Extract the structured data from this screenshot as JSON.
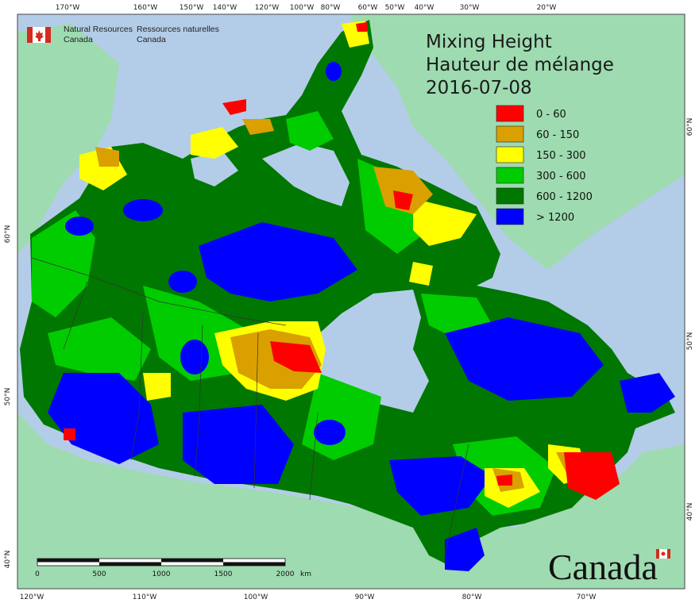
{
  "branding": {
    "agency_en_line1": "Natural Resources",
    "agency_en_line2": "Canada",
    "agency_fr_line1": "Ressources naturelles",
    "agency_fr_line2": "Canada",
    "wordmark": "Canada",
    "flag_color": "#d52b1e"
  },
  "title": {
    "line1": "Mixing Height",
    "line2": "Hauteur de mélange",
    "date": "2016-07-08"
  },
  "legend": [
    {
      "label": "0 - 60",
      "color": "#ff0000"
    },
    {
      "label": "60 - 150",
      "color": "#d9a000"
    },
    {
      "label": "150 - 300",
      "color": "#ffff00"
    },
    {
      "label": "300 - 600",
      "color": "#00cc00"
    },
    {
      "label": "600 - 1200",
      "color": "#007700"
    },
    {
      "label": "> 1200",
      "color": "#0000ff"
    }
  ],
  "graticule": {
    "top": [
      "170°W",
      "160°W",
      "150°W",
      "140°W",
      "120°W",
      "100°W",
      "80°W",
      "60°W",
      "50°W",
      "40°W",
      "30°W",
      "20°W"
    ],
    "bottom": [
      "120°W",
      "110°W",
      "100°W",
      "90°W",
      "80°W",
      "70°W"
    ],
    "left": [
      "60°N",
      "50°N",
      "40°N"
    ],
    "right": [
      "60°N",
      "50°N",
      "40°N"
    ]
  },
  "scale_bar": {
    "labels": [
      "0",
      "500",
      "1000",
      "1500",
      "2000"
    ],
    "unit": "km"
  },
  "colors": {
    "ocean": "#b3cde8",
    "foreign_land": "#9edbb0",
    "border": "#333333"
  }
}
